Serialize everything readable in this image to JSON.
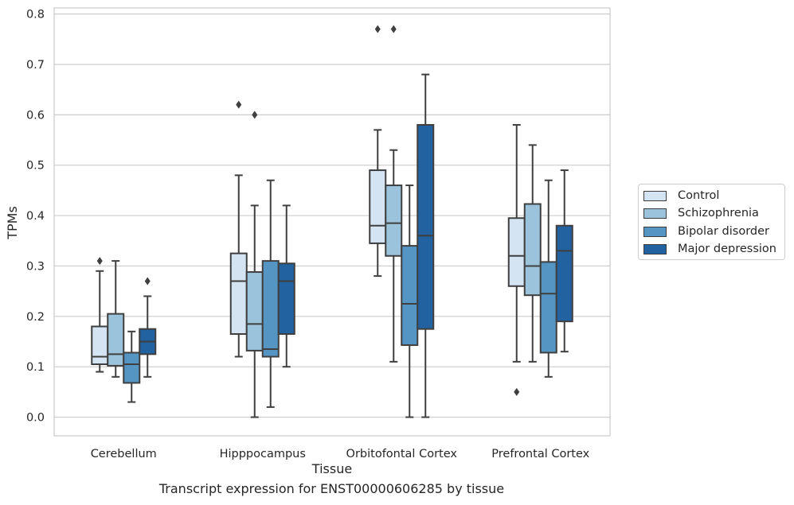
{
  "chart_data": {
    "type": "box",
    "xlabel": "Tissue",
    "ylabel": "TPMs",
    "ylim": [
      -0.037,
      0.812
    ],
    "yticks": [
      0.0,
      0.1,
      0.2,
      0.3,
      0.4,
      0.5,
      0.6,
      0.7,
      0.8
    ],
    "ytick_labels": [
      "0.0",
      "0.1",
      "0.2",
      "0.3",
      "0.4",
      "0.5",
      "0.6",
      "0.7",
      "0.8"
    ],
    "categories": [
      "Cerebellum",
      "Hipppocampus",
      "Orbitofontal Cortex",
      "Prefrontal Cortex"
    ],
    "grid": "horizontal",
    "legend_position": "right",
    "series": [
      {
        "name": "Control",
        "color": "#d5e4f2",
        "boxes": [
          {
            "whislo": 0.09,
            "q1": 0.105,
            "med": 0.12,
            "q3": 0.18,
            "whishi": 0.29,
            "fliers": [
              0.31
            ]
          },
          {
            "whislo": 0.12,
            "q1": 0.165,
            "med": 0.27,
            "q3": 0.325,
            "whishi": 0.48,
            "fliers": [
              0.62
            ]
          },
          {
            "whislo": 0.28,
            "q1": 0.345,
            "med": 0.38,
            "q3": 0.49,
            "whishi": 0.57,
            "fliers": [
              0.77
            ]
          },
          {
            "whislo": 0.11,
            "q1": 0.26,
            "med": 0.32,
            "q3": 0.395,
            "whishi": 0.58,
            "fliers": [
              0.05
            ]
          }
        ]
      },
      {
        "name": "Schizophrenia",
        "color": "#9bc3dc",
        "boxes": [
          {
            "whislo": 0.08,
            "q1": 0.102,
            "med": 0.125,
            "q3": 0.205,
            "whishi": 0.31,
            "fliers": []
          },
          {
            "whislo": 0.0,
            "q1": 0.132,
            "med": 0.185,
            "q3": 0.288,
            "whishi": 0.42,
            "fliers": [
              0.6
            ]
          },
          {
            "whislo": 0.11,
            "q1": 0.32,
            "med": 0.385,
            "q3": 0.46,
            "whishi": 0.53,
            "fliers": [
              0.77
            ]
          },
          {
            "whislo": 0.11,
            "q1": 0.242,
            "med": 0.3,
            "q3": 0.423,
            "whishi": 0.54,
            "fliers": []
          }
        ]
      },
      {
        "name": "Bipolar disorder",
        "color": "#5495c3",
        "boxes": [
          {
            "whislo": 0.03,
            "q1": 0.068,
            "med": 0.105,
            "q3": 0.128,
            "whishi": 0.17,
            "fliers": []
          },
          {
            "whislo": 0.02,
            "q1": 0.12,
            "med": 0.135,
            "q3": 0.31,
            "whishi": 0.47,
            "fliers": []
          },
          {
            "whislo": 0.0,
            "q1": 0.143,
            "med": 0.225,
            "q3": 0.34,
            "whishi": 0.46,
            "fliers": []
          },
          {
            "whislo": 0.08,
            "q1": 0.128,
            "med": 0.245,
            "q3": 0.308,
            "whishi": 0.47,
            "fliers": []
          }
        ]
      },
      {
        "name": "Major depression",
        "color": "#2362a1",
        "boxes": [
          {
            "whislo": 0.08,
            "q1": 0.125,
            "med": 0.15,
            "q3": 0.175,
            "whishi": 0.24,
            "fliers": [
              0.27
            ]
          },
          {
            "whislo": 0.1,
            "q1": 0.165,
            "med": 0.27,
            "q3": 0.305,
            "whishi": 0.42,
            "fliers": []
          },
          {
            "whislo": 0.0,
            "q1": 0.175,
            "med": 0.36,
            "q3": 0.58,
            "whishi": 0.68,
            "fliers": []
          },
          {
            "whislo": 0.13,
            "q1": 0.19,
            "med": 0.33,
            "q3": 0.38,
            "whishi": 0.49,
            "fliers": []
          }
        ]
      }
    ]
  },
  "caption": "Transcript expression for ENST00000606285 by tissue"
}
